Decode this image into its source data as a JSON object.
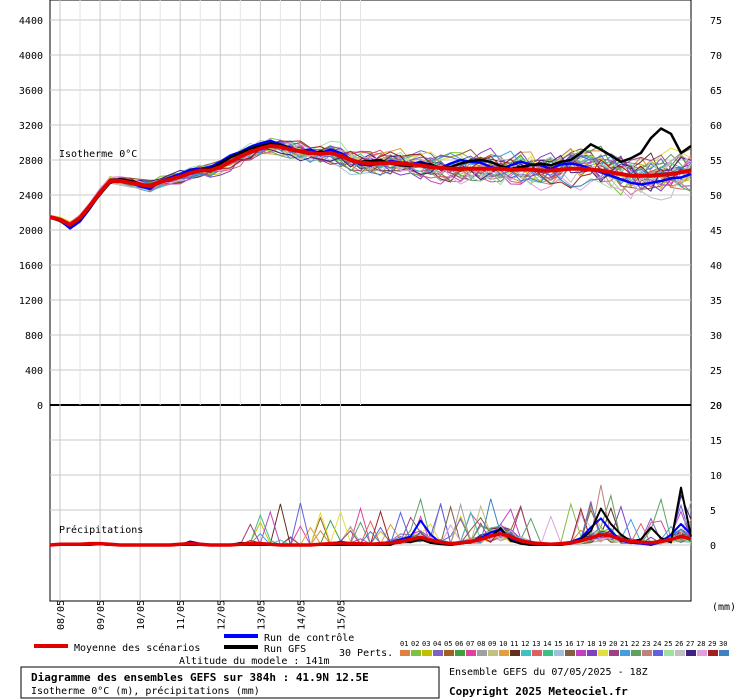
{
  "chart_data": [
    {
      "type": "line",
      "title": "Isotherme 0°C",
      "left_axis_ticks": [
        "4400",
        "4000",
        "3600",
        "3200",
        "2800",
        "2400",
        "2000",
        "1600",
        "1200",
        "800",
        "400",
        "0"
      ],
      "right_axis_ticks": [
        "75",
        "70",
        "65",
        "60",
        "55",
        "50",
        "45",
        "40",
        "35",
        "30",
        "25",
        "20"
      ],
      "ylim": [
        0,
        4600
      ],
      "x_labels": [
        "08/05",
        "09/05",
        "10/05",
        "11/05",
        "12/05",
        "13/05",
        "14/05",
        "15/05"
      ],
      "x": [
        0,
        6,
        12,
        18,
        24,
        30,
        36,
        42,
        48,
        54,
        60,
        66,
        72,
        78,
        84,
        90,
        96,
        102,
        108,
        114,
        120,
        126,
        132,
        138,
        144,
        150,
        156,
        162,
        168,
        174,
        180,
        186,
        192,
        198,
        204,
        210,
        216,
        222,
        228,
        234,
        240,
        246,
        252,
        258,
        264,
        270,
        276,
        282,
        288,
        294,
        300,
        306,
        312,
        318,
        324,
        330,
        336,
        342,
        348,
        354,
        360,
        366,
        372,
        378,
        384
      ],
      "series": [
        {
          "name": "Moyenne des scénarios",
          "color": "#e00000",
          "values": [
            2150,
            2120,
            2060,
            2140,
            2280,
            2430,
            2560,
            2560,
            2540,
            2520,
            2500,
            2550,
            2580,
            2610,
            2650,
            2680,
            2680,
            2720,
            2780,
            2840,
            2890,
            2930,
            2960,
            2950,
            2920,
            2900,
            2880,
            2870,
            2880,
            2850,
            2800,
            2770,
            2760,
            2760,
            2770,
            2760,
            2750,
            2740,
            2720,
            2710,
            2700,
            2700,
            2700,
            2700,
            2700,
            2700,
            2690,
            2690,
            2690,
            2680,
            2680,
            2690,
            2700,
            2700,
            2690,
            2680,
            2660,
            2640,
            2620,
            2620,
            2620,
            2630,
            2640,
            2660,
            2680
          ]
        },
        {
          "name": "Run de contrôle",
          "color": "#0000ff",
          "values": [
            2150,
            2110,
            2020,
            2100,
            2250,
            2420,
            2550,
            2580,
            2540,
            2500,
            2470,
            2560,
            2600,
            2640,
            2690,
            2700,
            2720,
            2780,
            2850,
            2890,
            2950,
            2990,
            3020,
            2980,
            2940,
            2900,
            2920,
            2870,
            2920,
            2880,
            2810,
            2750,
            2740,
            2760,
            2790,
            2770,
            2750,
            2780,
            2740,
            2710,
            2760,
            2800,
            2780,
            2770,
            2720,
            2690,
            2740,
            2780,
            2750,
            2740,
            2700,
            2750,
            2760,
            2740,
            2700,
            2660,
            2620,
            2580,
            2540,
            2520,
            2540,
            2560,
            2590,
            2600,
            2640
          ]
        },
        {
          "name": "Run GFS",
          "color": "#000000",
          "values": [
            2140,
            2110,
            2050,
            2120,
            2260,
            2410,
            2540,
            2580,
            2560,
            2530,
            2490,
            2540,
            2590,
            2620,
            2660,
            2690,
            2700,
            2760,
            2830,
            2880,
            2930,
            2960,
            2990,
            2970,
            2930,
            2890,
            2870,
            2900,
            2880,
            2840,
            2800,
            2780,
            2790,
            2800,
            2760,
            2740,
            2730,
            2760,
            2750,
            2710,
            2720,
            2760,
            2790,
            2800,
            2780,
            2730,
            2700,
            2720,
            2740,
            2760,
            2740,
            2780,
            2800,
            2880,
            2980,
            2920,
            2850,
            2780,
            2820,
            2880,
            3050,
            3160,
            3100,
            2880,
            2960
          ]
        }
      ]
    },
    {
      "type": "line",
      "title": "Précipitations",
      "right_axis_ticks": [
        "20",
        "15",
        "10",
        "5",
        "0"
      ],
      "unit": "(mm)",
      "ylim": [
        -10,
        20
      ],
      "series": [
        {
          "name": "Moyenne des scénarios",
          "color": "#e00000",
          "values": [
            0,
            0.1,
            0.1,
            0.1,
            0.2,
            0.2,
            0.1,
            0,
            0,
            0,
            0,
            0,
            0,
            0.1,
            0.2,
            0.1,
            0,
            0,
            0,
            0.1,
            0.2,
            0.2,
            0.1,
            0,
            0,
            0,
            0,
            0.1,
            0.2,
            0.3,
            0.2,
            0.2,
            0.1,
            0.2,
            0.3,
            0.5,
            0.8,
            1.1,
            0.7,
            0.4,
            0.2,
            0.3,
            0.5,
            0.8,
            1.3,
            1.6,
            1.2,
            0.6,
            0.3,
            0.2,
            0.1,
            0.2,
            0.3,
            0.6,
            1.0,
            1.5,
            1.3,
            0.8,
            0.5,
            0.4,
            0.3,
            0.5,
            0.8,
            1.2,
            0.9
          ]
        },
        {
          "name": "Run de contrôle",
          "color": "#0000ff",
          "values": [
            0,
            0,
            0.2,
            0,
            0,
            0.1,
            0,
            0,
            0,
            0,
            0,
            0,
            0,
            0,
            0.5,
            0.2,
            0,
            0,
            0,
            0,
            0,
            0,
            0,
            0,
            0,
            0,
            0,
            0,
            0,
            0.5,
            0.2,
            0,
            0,
            0,
            0.4,
            0.8,
            1.2,
            3.5,
            1.5,
            0.3,
            0,
            0.2,
            0.5,
            1.0,
            1.8,
            2.2,
            0.8,
            0.2,
            0,
            0,
            0,
            0,
            0.4,
            1.0,
            2.5,
            3.8,
            2.0,
            0.6,
            0.3,
            0.2,
            0,
            0.4,
            1.5,
            3.0,
            1.5
          ]
        },
        {
          "name": "Run GFS",
          "color": "#000000",
          "values": [
            0,
            0,
            0,
            0,
            0.2,
            0.1,
            0,
            0,
            0,
            0,
            0,
            0,
            0,
            0,
            0,
            0,
            0,
            0,
            0,
            0.3,
            0.2,
            0,
            0,
            0,
            0,
            0,
            0,
            0,
            0,
            0,
            0,
            0,
            0,
            0,
            0,
            0.6,
            0.4,
            0.8,
            0.3,
            0.1,
            0,
            0.2,
            0.4,
            0.8,
            1.2,
            2.4,
            0.6,
            0.2,
            0,
            0,
            0,
            0,
            0.2,
            0.8,
            2.0,
            5.2,
            3.0,
            1.5,
            0.5,
            0.8,
            2.5,
            1.0,
            0.4,
            8.2,
            1.2
          ]
        }
      ]
    }
  ],
  "legend": {
    "mean_label": "Moyenne des scénarios",
    "control_label": "Run de contrôle",
    "gfs_label": "Run GFS",
    "perts_label": "30 Perts.",
    "perts_numbers": [
      "01",
      "02",
      "03",
      "04",
      "05",
      "06",
      "07",
      "08",
      "09",
      "10",
      "11",
      "12",
      "13",
      "14",
      "15",
      "16",
      "17",
      "18",
      "19",
      "20",
      "21",
      "22",
      "23",
      "24",
      "25",
      "26",
      "27",
      "28",
      "29",
      "30"
    ],
    "perts_colors": [
      "#e08040",
      "#80c040",
      "#c0c000",
      "#8060c0",
      "#a06020",
      "#40a040",
      "#e040a0",
      "#a0a0a0",
      "#c0c080",
      "#e0a040",
      "#603020",
      "#40c0c0",
      "#e06060",
      "#40c080",
      "#a0c0e0",
      "#806040",
      "#c040c0",
      "#8040c0",
      "#e0e040",
      "#a04080",
      "#40a0e0",
      "#60a060",
      "#c08080",
      "#6060e0",
      "#a0e0a0",
      "#c0c0c0",
      "#402080",
      "#e0a0e0",
      "#a02020",
      "#4080c0"
    ],
    "mean_color": "#e00000",
    "control_color": "#0000ff",
    "gfs_color": "#000000"
  },
  "footer": {
    "altitude": "Altitude du modele : 141m",
    "box_title": "Diagramme des ensembles GEFS sur 384h : 41.9N 12.5E",
    "box_subtitle": "Isotherme 0°C (m), précipitations (mm)",
    "ensemble_run": "Ensemble GEFS du 07/05/2025 - 18Z",
    "copyright": "Copyright 2025 Meteociel.fr"
  }
}
